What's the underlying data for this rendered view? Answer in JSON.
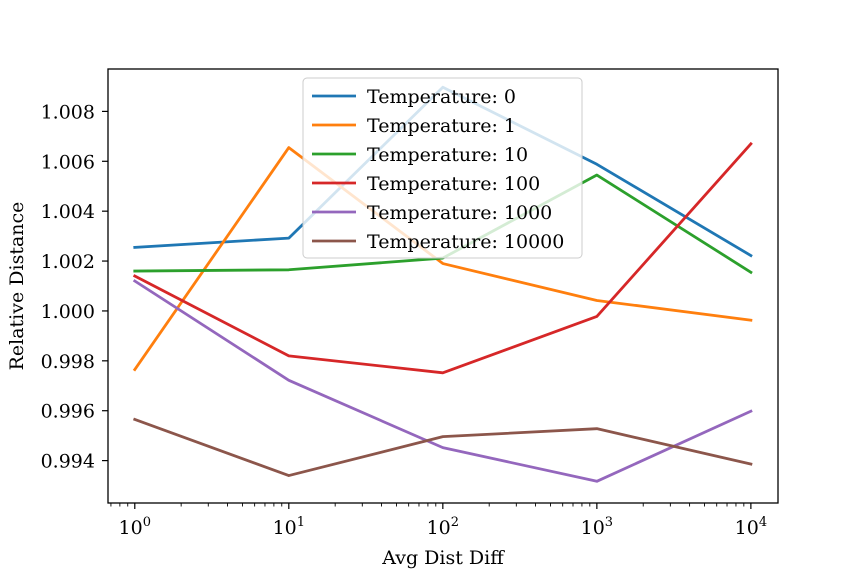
{
  "chart_data": {
    "type": "line",
    "title": "",
    "xlabel": "Avg Dist Diff",
    "ylabel": "Relative Distance",
    "xscale": "log",
    "x": [
      1,
      10,
      100,
      1000,
      10000
    ],
    "xlim": [
      0.67,
      15000
    ],
    "ylim": [
      0.9923,
      1.0097
    ],
    "x_tick_labels": [
      {
        "value": 1,
        "base": "10",
        "exp": "0"
      },
      {
        "value": 10,
        "base": "10",
        "exp": "1"
      },
      {
        "value": 100,
        "base": "10",
        "exp": "2"
      },
      {
        "value": 1000,
        "base": "10",
        "exp": "3"
      },
      {
        "value": 10000,
        "base": "10",
        "exp": "4"
      }
    ],
    "y_ticks": [
      0.994,
      0.996,
      0.998,
      1.0,
      1.002,
      1.004,
      1.006,
      1.008
    ],
    "y_tick_labels": [
      "0.994",
      "0.996",
      "0.998",
      "1.000",
      "1.002",
      "1.004",
      "1.006",
      "1.008"
    ],
    "grid": false,
    "legend_position": "upper center",
    "series": [
      {
        "name": "Temperature: 0",
        "color": "#1f77b4",
        "values": [
          1.00255,
          1.00292,
          1.00897,
          1.00588,
          1.00222
        ]
      },
      {
        "name": "Temperature: 1",
        "color": "#ff7f0e",
        "values": [
          0.99765,
          1.00655,
          1.0019,
          1.00042,
          0.99963
        ]
      },
      {
        "name": "Temperature: 10",
        "color": "#2ca02c",
        "values": [
          1.0016,
          1.00165,
          1.00212,
          1.00545,
          1.00155
        ]
      },
      {
        "name": "Temperature: 100",
        "color": "#d62728",
        "values": [
          1.0014,
          0.9982,
          0.99752,
          0.99978,
          1.0067
        ]
      },
      {
        "name": "Temperature: 1000",
        "color": "#9467bd",
        "values": [
          1.0012,
          0.99722,
          0.99452,
          0.99317,
          0.99598
        ]
      },
      {
        "name": "Temperature: 10000",
        "color": "#8c564b",
        "values": [
          0.99565,
          0.9934,
          0.99496,
          0.99528,
          0.99386
        ]
      }
    ]
  }
}
